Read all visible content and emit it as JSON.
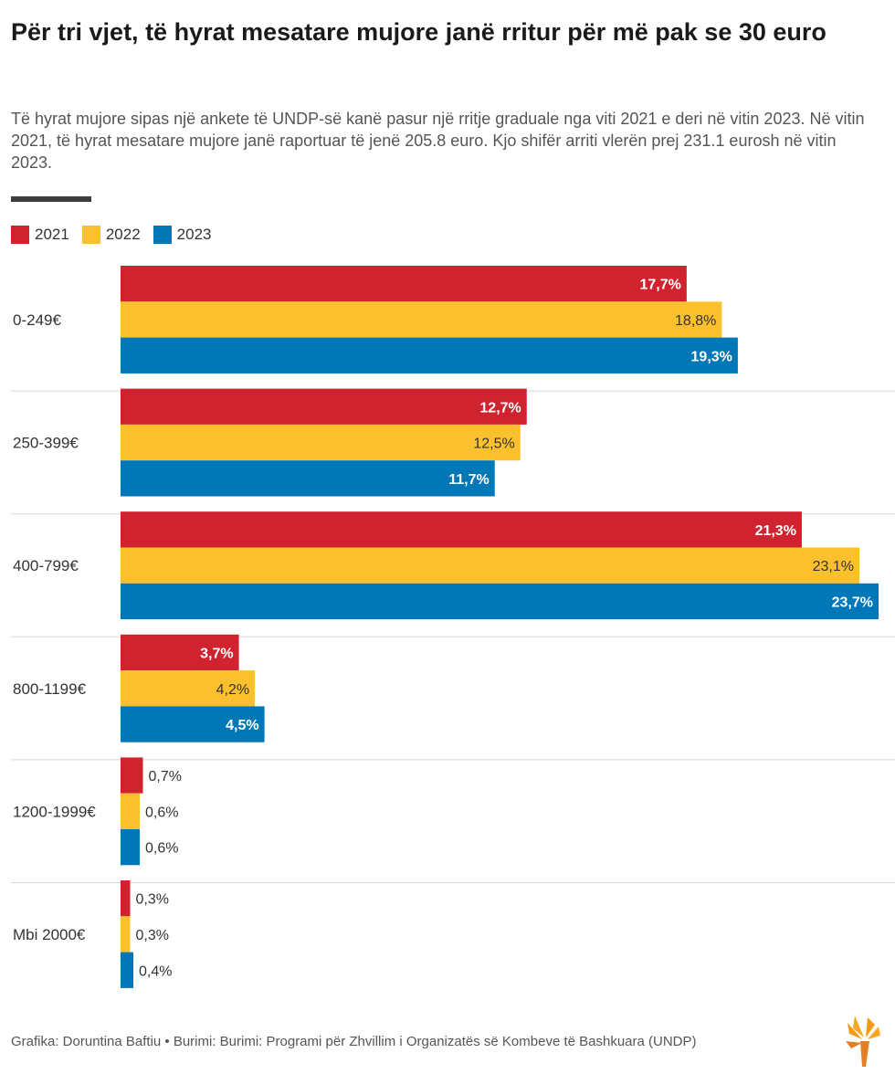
{
  "header": {
    "title": "Për tri vjet, të hyrat mesatare mujore janë rritur për më pak se 30 euro",
    "subtitle": "Të hyrat mujore sipas një ankete të UNDP-së kanë pasur një rritje graduale nga viti 2021 e deri në vitin 2023. Në vitin 2021, të hyrat mesatare mujore janë raportuar të jenë 205.8 euro. Kjo shifër arriti vlerën prej 231.1 eurosh në vitin 2023."
  },
  "legend": [
    {
      "label": "2021",
      "color": "#d0222f"
    },
    {
      "label": "2022",
      "color": "#fbc02d"
    },
    {
      "label": "2023",
      "color": "#0077b6"
    }
  ],
  "footer": {
    "credit": "Grafika: Doruntina Baftiu • Burimi: Burimi: Programi për Zhvillim i Organizatës së Kombeve të Bashkuara (UNDP)",
    "logo_icon": "torch-logo-icon"
  },
  "chart_data": {
    "type": "bar",
    "orientation": "horizontal",
    "categories": [
      "0-249€",
      "250-399€",
      "400-799€",
      "800-1199€",
      "1200-1999€",
      "Mbi 2000€"
    ],
    "series": [
      {
        "name": "2021",
        "color": "#d0222f",
        "label_color": "#ffffff",
        "values": [
          17.7,
          12.7,
          21.3,
          3.7,
          0.7,
          0.3
        ],
        "labels": [
          "17,7%",
          "12,7%",
          "21,3%",
          "3,7%",
          "0,7%",
          "0,3%"
        ]
      },
      {
        "name": "2022",
        "color": "#fbc02d",
        "label_color": "#333333",
        "values": [
          18.8,
          12.5,
          23.1,
          4.2,
          0.6,
          0.3
        ],
        "labels": [
          "18,8%",
          "12,5%",
          "23,1%",
          "4,2%",
          "0,6%",
          "0,3%"
        ]
      },
      {
        "name": "2023",
        "color": "#0077b6",
        "label_color": "#ffffff",
        "values": [
          19.3,
          11.7,
          23.7,
          4.5,
          0.6,
          0.4
        ],
        "labels": [
          "19,3%",
          "11,7%",
          "23,7%",
          "4,5%",
          "0,6%",
          "0,4%"
        ]
      }
    ],
    "xlim": [
      0,
      23.7
    ],
    "grid": false,
    "legend_position": "top-left"
  }
}
